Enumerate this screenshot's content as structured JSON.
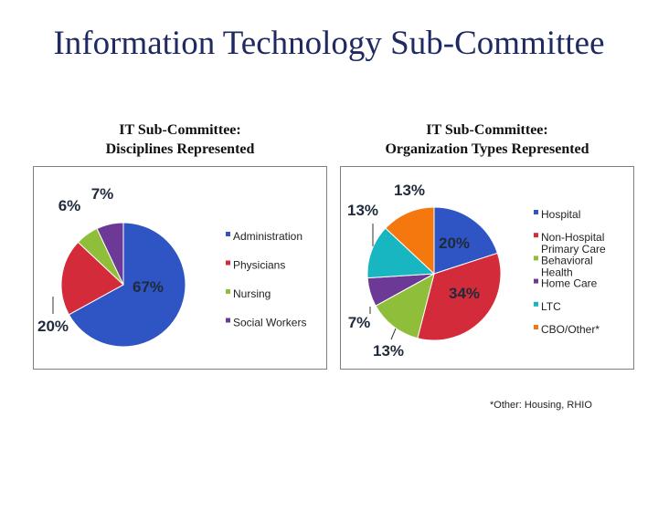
{
  "slide": {
    "title": "Information Technology Sub-Committee"
  },
  "footnote": "*Other: Housing, RHIO",
  "chart_data": [
    {
      "type": "pie",
      "title": "IT Sub-Committee:",
      "subtitle": "Disciplines Represented",
      "legend_position": "right",
      "categories": [
        "Administration",
        "Physicians",
        "Nursing",
        "Social Workers"
      ],
      "values": [
        67,
        20,
        6,
        7
      ],
      "data_labels": [
        "67%",
        "20%",
        "6%",
        "7%"
      ],
      "colors": [
        "#2f55c4",
        "#d42b3a",
        "#8fbf3a",
        "#6c3a96"
      ]
    },
    {
      "type": "pie",
      "title": "IT Sub-Committee:",
      "subtitle": "Organization Types Represented",
      "legend_position": "right",
      "categories": [
        "Hospital",
        "Non-Hospital Primary Care",
        "Behavioral Health",
        "Home Care",
        "LTC",
        "CBO/Other*"
      ],
      "values": [
        20,
        34,
        13,
        7,
        13,
        13
      ],
      "data_labels": [
        "20%",
        "34%",
        "13%",
        "7%",
        "13%",
        "13%"
      ],
      "colors": [
        "#2f55c4",
        "#d42b3a",
        "#8fbf3a",
        "#6c3a96",
        "#17b6c0",
        "#f5780f"
      ]
    }
  ]
}
